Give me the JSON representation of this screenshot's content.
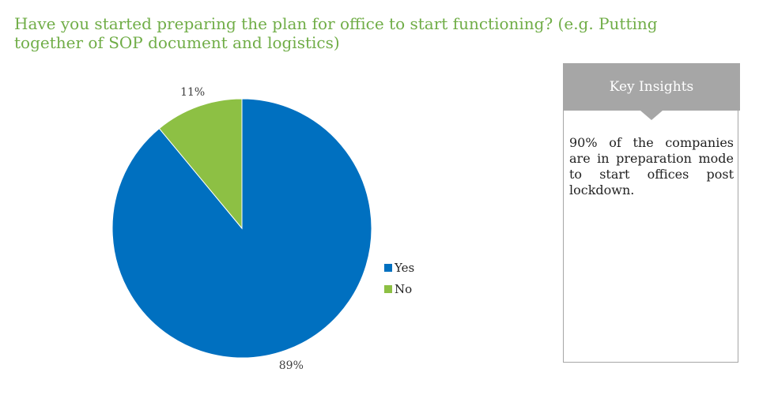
{
  "title": "Have you started preparing the plan for office to start functioning? (e.g. Putting together of SOP document and logistics)",
  "chart_data": {
    "type": "pie",
    "categories": [
      "Yes",
      "No"
    ],
    "values": [
      89,
      11
    ],
    "data_labels": [
      "89%",
      "11%"
    ],
    "colors": [
      "#0070c0",
      "#8dc044"
    ],
    "legend_position": "right"
  },
  "insights": {
    "header": "Key Insights",
    "text": "90% of the companies are in preparation mode to start offices post lockdown."
  }
}
